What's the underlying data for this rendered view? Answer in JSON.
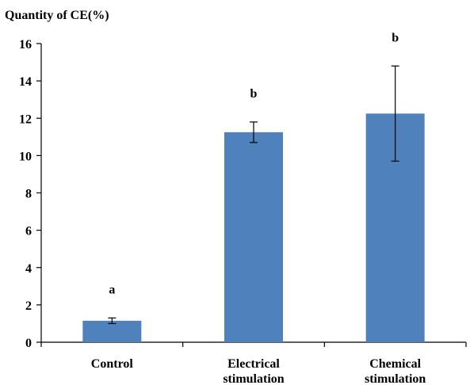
{
  "chart_data": {
    "type": "bar",
    "ylabel": "Quantity of CE(%)",
    "ylim": [
      0,
      16
    ],
    "yticks": [
      0,
      2,
      4,
      6,
      8,
      10,
      12,
      14,
      16
    ],
    "grid": false,
    "legend": "none",
    "bar_color": "#4F81BD",
    "categories": [
      [
        "Control"
      ],
      [
        "Electrical",
        "stimulation"
      ],
      [
        "Chemical",
        "stimulation"
      ]
    ],
    "values": [
      1.15,
      11.25,
      12.25
    ],
    "error": [
      0.15,
      0.55,
      2.55
    ],
    "annotations": [
      "a",
      "b",
      "b"
    ]
  }
}
